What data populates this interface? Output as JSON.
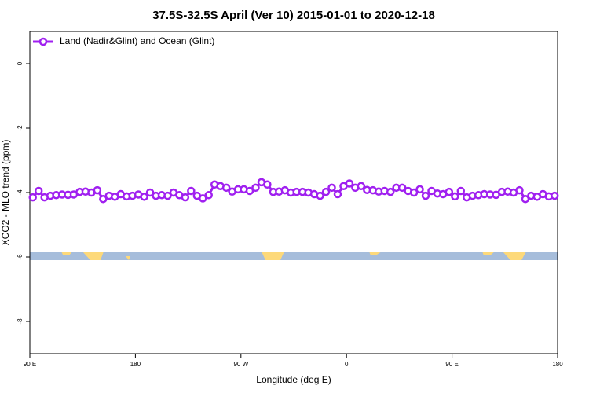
{
  "chart_data": {
    "type": "line",
    "title": "37.5S-32.5S April (Ver 10)   2015-01-01 to 2020-12-18",
    "xlabel": "Longitude (deg E)",
    "ylabel": "XCO2 - MLO trend (ppm)",
    "x": [
      92.5,
      97.5,
      102.5,
      107.5,
      112.5,
      117.5,
      122.5,
      127.5,
      132.5,
      137.5,
      142.5,
      147.5,
      152.5,
      157.5,
      162.5,
      167.5,
      172.5,
      177.5,
      182.5,
      187.5,
      192.5,
      197.5,
      202.5,
      207.5,
      212.5,
      217.5,
      222.5,
      227.5,
      232.5,
      237.5,
      242.5,
      247.5,
      252.5,
      257.5,
      262.5,
      267.5,
      272.5,
      277.5,
      282.5,
      287.5,
      292.5,
      297.5,
      302.5,
      307.5,
      312.5,
      317.5,
      322.5,
      327.5,
      332.5,
      337.5,
      342.5,
      347.5,
      352.5,
      357.5,
      362.5,
      367.5,
      372.5,
      377.5,
      382.5,
      387.5,
      392.5,
      397.5,
      402.5,
      407.5,
      412.5,
      417.5,
      422.5,
      427.5,
      432.5,
      437.5,
      442.5,
      447.5,
      452.5,
      457.5,
      462.5,
      467.5,
      472.5,
      477.5,
      482.5,
      487.5,
      492.5,
      497.5,
      502.5,
      507.5,
      512.5,
      517.5,
      522.5,
      527.5,
      532.5,
      537.5
    ],
    "series": [
      {
        "name": "Land (Nadir&Glint) and Ocean (Glint)",
        "color": "#a020f0",
        "values": [
          -4.15,
          -3.95,
          -4.15,
          -4.1,
          -4.08,
          -4.06,
          -4.07,
          -4.06,
          -3.98,
          -3.97,
          -4.0,
          -3.93,
          -4.2,
          -4.1,
          -4.13,
          -4.05,
          -4.12,
          -4.1,
          -4.06,
          -4.13,
          -4.0,
          -4.1,
          -4.08,
          -4.1,
          -4.0,
          -4.08,
          -4.15,
          -3.95,
          -4.1,
          -4.18,
          -4.08,
          -3.75,
          -3.8,
          -3.85,
          -3.97,
          -3.9,
          -3.9,
          -3.95,
          -3.85,
          -3.68,
          -3.75,
          -3.98,
          -3.97,
          -3.93,
          -4.0,
          -3.98,
          -3.98,
          -4.0,
          -4.05,
          -4.1,
          -3.98,
          -3.85,
          -4.05,
          -3.8,
          -3.72,
          -3.85,
          -3.8,
          -3.92,
          -3.93,
          -3.97,
          -3.95,
          -3.98,
          -3.85,
          -3.85,
          -3.95,
          -4.0,
          -3.9,
          -4.1,
          -3.95,
          -4.03,
          -4.05,
          -3.98,
          -4.12,
          -3.95,
          -4.15,
          -4.1,
          -4.08,
          -4.05,
          -4.06,
          -4.07,
          -3.98,
          -3.97,
          -4.0,
          -3.93,
          -4.2,
          -4.1,
          -4.13,
          -4.05,
          -4.12,
          -4.1
        ]
      }
    ],
    "xlim": [
      90,
      540
    ],
    "xticks": [
      {
        "value": 90,
        "label": "90 E"
      },
      180,
      {
        "value": 270,
        "label": "90 W"
      },
      {
        "value": 360,
        "label": "0"
      },
      {
        "value": 450,
        "label": "90 E"
      },
      {
        "value": 540,
        "label": "180"
      }
    ],
    "ylim": [
      -9,
      1
    ],
    "yticks": [
      -8,
      -6,
      -4,
      -2,
      0
    ],
    "legend": "top-left",
    "grid": false
  }
}
